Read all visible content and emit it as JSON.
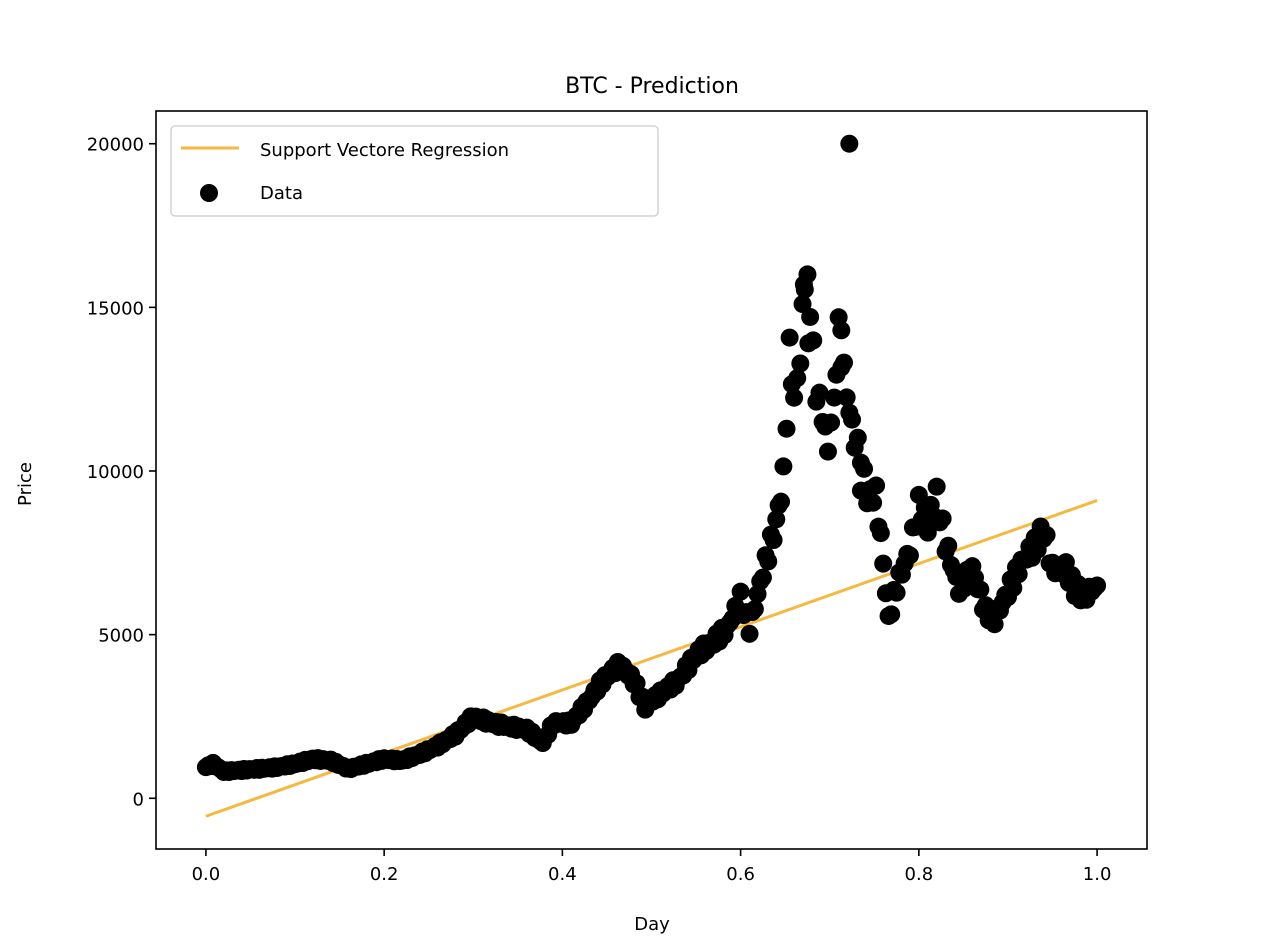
{
  "chart_data": {
    "type": "scatter",
    "title": "BTC - Prediction",
    "xlabel": "Day",
    "ylabel": "Price",
    "xlim": [
      -0.056,
      1.056
    ],
    "ylim": [
      -1550,
      21000
    ],
    "x_ticks": [
      0.0,
      0.2,
      0.4,
      0.6,
      0.8,
      1.0
    ],
    "x_tick_labels": [
      "0.0",
      "0.2",
      "0.4",
      "0.6",
      "0.8",
      "1.0"
    ],
    "y_ticks": [
      0,
      5000,
      10000,
      15000,
      20000
    ],
    "y_tick_labels": [
      "0",
      "5000",
      "10000",
      "15000",
      "20000"
    ],
    "grid": false,
    "legend_position": "top-left",
    "series": [
      {
        "name": "Support Vectore Regression",
        "kind": "line",
        "color": "#f5b841",
        "x": [
          0.0,
          1.0
        ],
        "y": [
          -550,
          9100
        ]
      },
      {
        "name": "Data",
        "kind": "scatter",
        "color": "#000000",
        "anchors": [
          [
            0.0,
            950
          ],
          [
            0.008,
            1050
          ],
          [
            0.02,
            820
          ],
          [
            0.04,
            860
          ],
          [
            0.06,
            900
          ],
          [
            0.08,
            950
          ],
          [
            0.1,
            1050
          ],
          [
            0.12,
            1200
          ],
          [
            0.14,
            1150
          ],
          [
            0.16,
            900
          ],
          [
            0.18,
            1050
          ],
          [
            0.2,
            1200
          ],
          [
            0.22,
            1150
          ],
          [
            0.24,
            1350
          ],
          [
            0.26,
            1600
          ],
          [
            0.28,
            1950
          ],
          [
            0.3,
            2500
          ],
          [
            0.32,
            2300
          ],
          [
            0.34,
            2200
          ],
          [
            0.36,
            2100
          ],
          [
            0.378,
            1700
          ],
          [
            0.39,
            2300
          ],
          [
            0.41,
            2300
          ],
          [
            0.43,
            3000
          ],
          [
            0.445,
            3600
          ],
          [
            0.465,
            4100
          ],
          [
            0.48,
            3600
          ],
          [
            0.493,
            2800
          ],
          [
            0.51,
            3200
          ],
          [
            0.53,
            3600
          ],
          [
            0.55,
            4400
          ],
          [
            0.57,
            4800
          ],
          [
            0.585,
            5200
          ],
          [
            0.6,
            6100
          ],
          [
            0.61,
            5200
          ],
          [
            0.625,
            6900
          ],
          [
            0.64,
            8400
          ],
          [
            0.648,
            9800
          ],
          [
            0.655,
            13600
          ],
          [
            0.66,
            12300
          ],
          [
            0.667,
            13300
          ],
          [
            0.672,
            16100
          ],
          [
            0.678,
            15000
          ],
          [
            0.685,
            12400
          ],
          [
            0.692,
            11800
          ],
          [
            0.698,
            10600
          ],
          [
            0.705,
            12300
          ],
          [
            0.71,
            14200
          ],
          [
            0.716,
            13000
          ],
          [
            0.722,
            11800
          ],
          [
            0.728,
            11000
          ],
          [
            0.735,
            10500
          ],
          [
            0.742,
            9200
          ],
          [
            0.752,
            9300
          ],
          [
            0.76,
            7200
          ],
          [
            0.766,
            5450
          ],
          [
            0.775,
            6500
          ],
          [
            0.79,
            7600
          ],
          [
            0.8,
            9000
          ],
          [
            0.81,
            8400
          ],
          [
            0.82,
            9200
          ],
          [
            0.83,
            7800
          ],
          [
            0.845,
            6400
          ],
          [
            0.86,
            7000
          ],
          [
            0.875,
            5700
          ],
          [
            0.885,
            5500
          ],
          [
            0.9,
            6300
          ],
          [
            0.915,
            7200
          ],
          [
            0.93,
            7700
          ],
          [
            0.94,
            8200
          ],
          [
            0.95,
            7000
          ],
          [
            0.965,
            7000
          ],
          [
            0.975,
            6400
          ],
          [
            0.985,
            6200
          ],
          [
            1.0,
            6500
          ]
        ],
        "outliers": [
          [
            0.722,
            20000
          ],
          [
            0.671,
            15700
          ],
          [
            0.676,
            13900
          ],
          [
            0.713,
            14300
          ],
          [
            0.735,
            9400
          ]
        ]
      }
    ]
  }
}
